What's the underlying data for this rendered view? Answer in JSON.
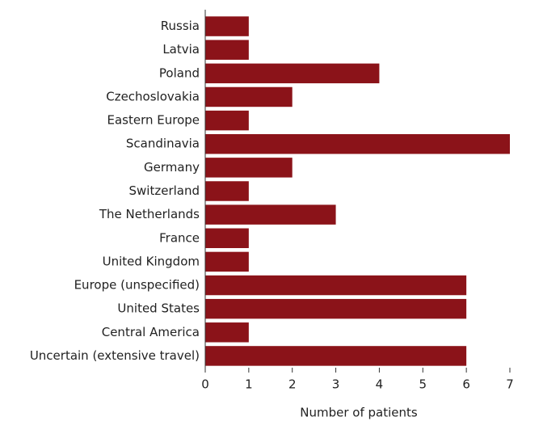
{
  "chart_data": {
    "type": "barh",
    "categories": [
      "Russia",
      "Latvia",
      "Poland",
      "Czechoslovakia",
      "Eastern Europe",
      "Scandinavia",
      "Germany",
      "Switzerland",
      "The Netherlands",
      "France",
      "United Kingdom",
      "Europe (unspecified)",
      "United States",
      "Central America",
      "Uncertain (extensive travel)"
    ],
    "values": [
      1,
      1,
      4,
      2,
      1,
      7,
      2,
      1,
      3,
      1,
      1,
      6,
      6,
      1,
      6
    ],
    "color": "#8b1319",
    "x_label": "Number of patients",
    "xlim": [
      0,
      7
    ],
    "xticks": [
      0,
      1,
      2,
      3,
      4,
      5,
      6,
      7
    ]
  }
}
